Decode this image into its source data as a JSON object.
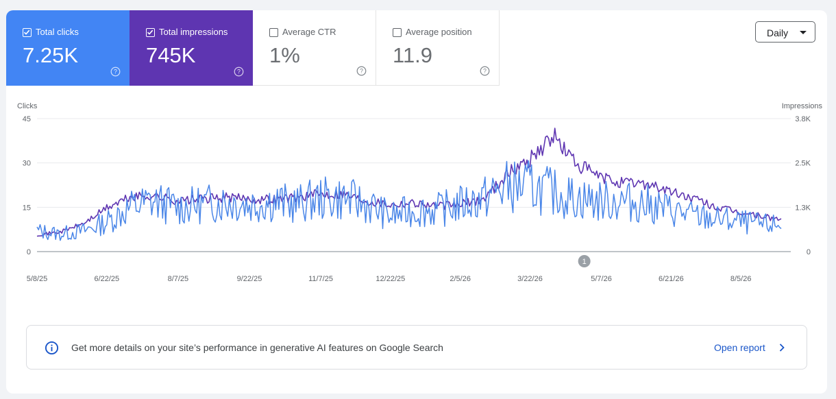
{
  "metrics": [
    {
      "label": "Total clicks",
      "value": "7.25K",
      "checked": true,
      "color": "#4285f4"
    },
    {
      "label": "Total impressions",
      "value": "745K",
      "checked": true,
      "color": "#5e35b1"
    },
    {
      "label": "Average CTR",
      "value": "1%",
      "checked": false
    },
    {
      "label": "Average position",
      "value": "11.9",
      "checked": false
    }
  ],
  "granularity": {
    "selected": "Daily"
  },
  "chart_data": {
    "type": "line",
    "left_axis": {
      "title": "Clicks",
      "ticks": [
        "45",
        "30",
        "15",
        "0"
      ],
      "range": [
        0,
        45
      ]
    },
    "right_axis": {
      "title": "Impressions",
      "ticks": [
        "3.8K",
        "2.5K",
        "1.3K",
        "0"
      ],
      "range": [
        0,
        3800
      ]
    },
    "x_ticks": [
      "5/8/25",
      "6/22/25",
      "8/7/25",
      "9/22/25",
      "11/7/25",
      "12/22/25",
      "2/5/26",
      "3/22/26",
      "5/7/26",
      "6/21/26",
      "8/5/26"
    ],
    "annotation": {
      "label": "1",
      "date": "4/26/26"
    },
    "series": [
      {
        "name": "Total clicks",
        "color": "#4a86e8",
        "axis": "left",
        "x": [
          "5/8/25",
          "5/23/25",
          "6/7/25",
          "6/22/25",
          "7/7/25",
          "7/22/25",
          "8/7/25",
          "8/22/25",
          "9/7/25",
          "9/22/25",
          "10/7/25",
          "10/22/25",
          "11/7/25",
          "11/22/25",
          "12/7/25",
          "12/22/25",
          "1/6/26",
          "1/21/26",
          "2/5/26",
          "2/20/26",
          "3/7/26",
          "3/22/26",
          "4/6/26",
          "4/21/26",
          "5/7/26",
          "5/22/26",
          "6/6/26",
          "6/21/26",
          "7/6/26",
          "7/21/26",
          "8/5/26",
          "8/20/26",
          "8/31/26"
        ],
        "values": [
          7,
          6,
          7,
          10,
          15,
          17,
          15,
          16,
          17,
          16,
          17,
          16,
          18,
          18,
          16,
          12,
          14,
          14,
          16,
          18,
          22,
          22,
          20,
          18,
          17,
          17,
          16,
          14,
          12,
          11,
          10,
          9,
          9
        ]
      },
      {
        "name": "Total impressions",
        "color": "#5e35b1",
        "axis": "right",
        "x": [
          "5/8/25",
          "5/23/25",
          "6/7/25",
          "6/22/25",
          "7/7/25",
          "7/22/25",
          "8/7/25",
          "8/22/25",
          "9/7/25",
          "9/22/25",
          "10/7/25",
          "10/22/25",
          "11/7/25",
          "11/22/25",
          "12/7/25",
          "12/22/25",
          "1/6/26",
          "1/21/26",
          "2/5/26",
          "2/20/26",
          "3/7/26",
          "3/22/26",
          "4/6/26",
          "4/21/26",
          "5/7/26",
          "5/22/26",
          "6/6/26",
          "6/21/26",
          "7/6/26",
          "7/21/26",
          "8/5/26",
          "8/20/26",
          "8/31/26"
        ],
        "values": [
          480,
          560,
          800,
          1250,
          1550,
          1600,
          1450,
          1500,
          1550,
          1500,
          1500,
          1550,
          1650,
          1650,
          1450,
          1350,
          1400,
          1300,
          1350,
          1500,
          2200,
          2650,
          3300,
          2500,
          2100,
          1950,
          1950,
          1700,
          1500,
          1250,
          1100,
          1000,
          900
        ]
      }
    ]
  },
  "banner": {
    "text": "Get more details on your site’s performance in generative AI features on Google Search",
    "link": "Open report"
  }
}
